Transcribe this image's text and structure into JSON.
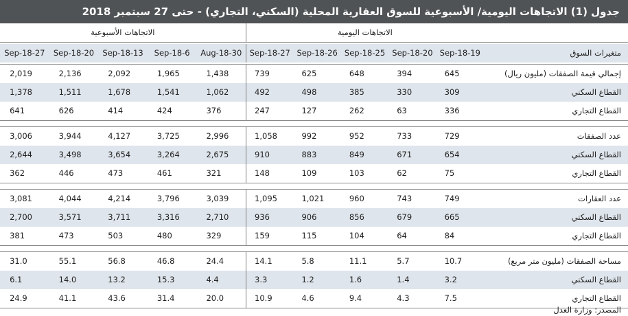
{
  "header": {
    "title": "جدول (1) الاتجاهات اليومية/ الأسبوعية للسوق العقارية المحلية (السكني، التجاري) - حتى 27 سبتمبر 2018"
  },
  "table": {
    "daily_heading": "الاتجاهات اليومية",
    "weekly_heading": "الاتجاهات الأسبوعية",
    "row_heading": "متغيرات السوق",
    "daily_dates": [
      "19-Sep-18",
      "20-Sep-18",
      "25-Sep-18",
      "26-Sep-18",
      "27-Sep-18"
    ],
    "weekly_dates": [
      "30-Aug-18",
      "6-Sep-18",
      "13-Sep-18",
      "20-Sep-18",
      "27-Sep-18"
    ],
    "groups": [
      {
        "rows": [
          {
            "label": "إجمالي قيمة الصفقات (مليون ريال)",
            "daily": [
              "645",
              "394",
              "648",
              "625",
              "739"
            ],
            "weekly": [
              "1,438",
              "1,965",
              "2,092",
              "2,136",
              "2,019"
            ]
          },
          {
            "label": "القطاع السكني",
            "daily": [
              "309",
              "330",
              "385",
              "498",
              "492"
            ],
            "weekly": [
              "1,062",
              "1,541",
              "1,678",
              "1,511",
              "1,378"
            ]
          },
          {
            "label": "القطاع التجاري",
            "daily": [
              "336",
              "63",
              "262",
              "127",
              "247"
            ],
            "weekly": [
              "376",
              "424",
              "414",
              "626",
              "641"
            ]
          }
        ]
      },
      {
        "rows": [
          {
            "label": "عدد الصفقات",
            "daily": [
              "729",
              "733",
              "952",
              "992",
              "1,058"
            ],
            "weekly": [
              "2,996",
              "3,725",
              "4,127",
              "3,944",
              "3,006"
            ]
          },
          {
            "label": "القطاع السكني",
            "daily": [
              "654",
              "671",
              "849",
              "883",
              "910"
            ],
            "weekly": [
              "2,675",
              "3,264",
              "3,654",
              "3,498",
              "2,644"
            ]
          },
          {
            "label": "القطاع التجاري",
            "daily": [
              "75",
              "62",
              "103",
              "109",
              "148"
            ],
            "weekly": [
              "321",
              "461",
              "473",
              "446",
              "362"
            ]
          }
        ]
      },
      {
        "rows": [
          {
            "label": "عدد العقارات",
            "daily": [
              "749",
              "743",
              "960",
              "1,021",
              "1,095"
            ],
            "weekly": [
              "3,039",
              "3,796",
              "4,214",
              "4,044",
              "3,081"
            ]
          },
          {
            "label": "القطاع السكني",
            "daily": [
              "665",
              "679",
              "856",
              "906",
              "936"
            ],
            "weekly": [
              "2,710",
              "3,316",
              "3,711",
              "3,571",
              "2,700"
            ]
          },
          {
            "label": "القطاع التجاري",
            "daily": [
              "84",
              "64",
              "104",
              "115",
              "159"
            ],
            "weekly": [
              "329",
              "480",
              "503",
              "473",
              "381"
            ]
          }
        ]
      },
      {
        "rows": [
          {
            "label": "مساحة الصفقات (مليون متر مربع)",
            "daily": [
              "10.7",
              "5.7",
              "11.1",
              "5.8",
              "14.1"
            ],
            "weekly": [
              "24.4",
              "46.8",
              "56.8",
              "55.1",
              "31.0"
            ]
          },
          {
            "label": "القطاع السكني",
            "daily": [
              "3.2",
              "1.4",
              "1.6",
              "1.2",
              "3.3"
            ],
            "weekly": [
              "4.4",
              "15.3",
              "13.2",
              "14.0",
              "6.1"
            ]
          },
          {
            "label": "القطاع التجاري",
            "daily": [
              "7.5",
              "4.3",
              "9.4",
              "4.6",
              "10.9"
            ],
            "weekly": [
              "20.0",
              "31.4",
              "43.6",
              "41.1",
              "24.9"
            ]
          }
        ]
      }
    ]
  },
  "footer": {
    "source": "المصدر: وزارة العدل"
  }
}
